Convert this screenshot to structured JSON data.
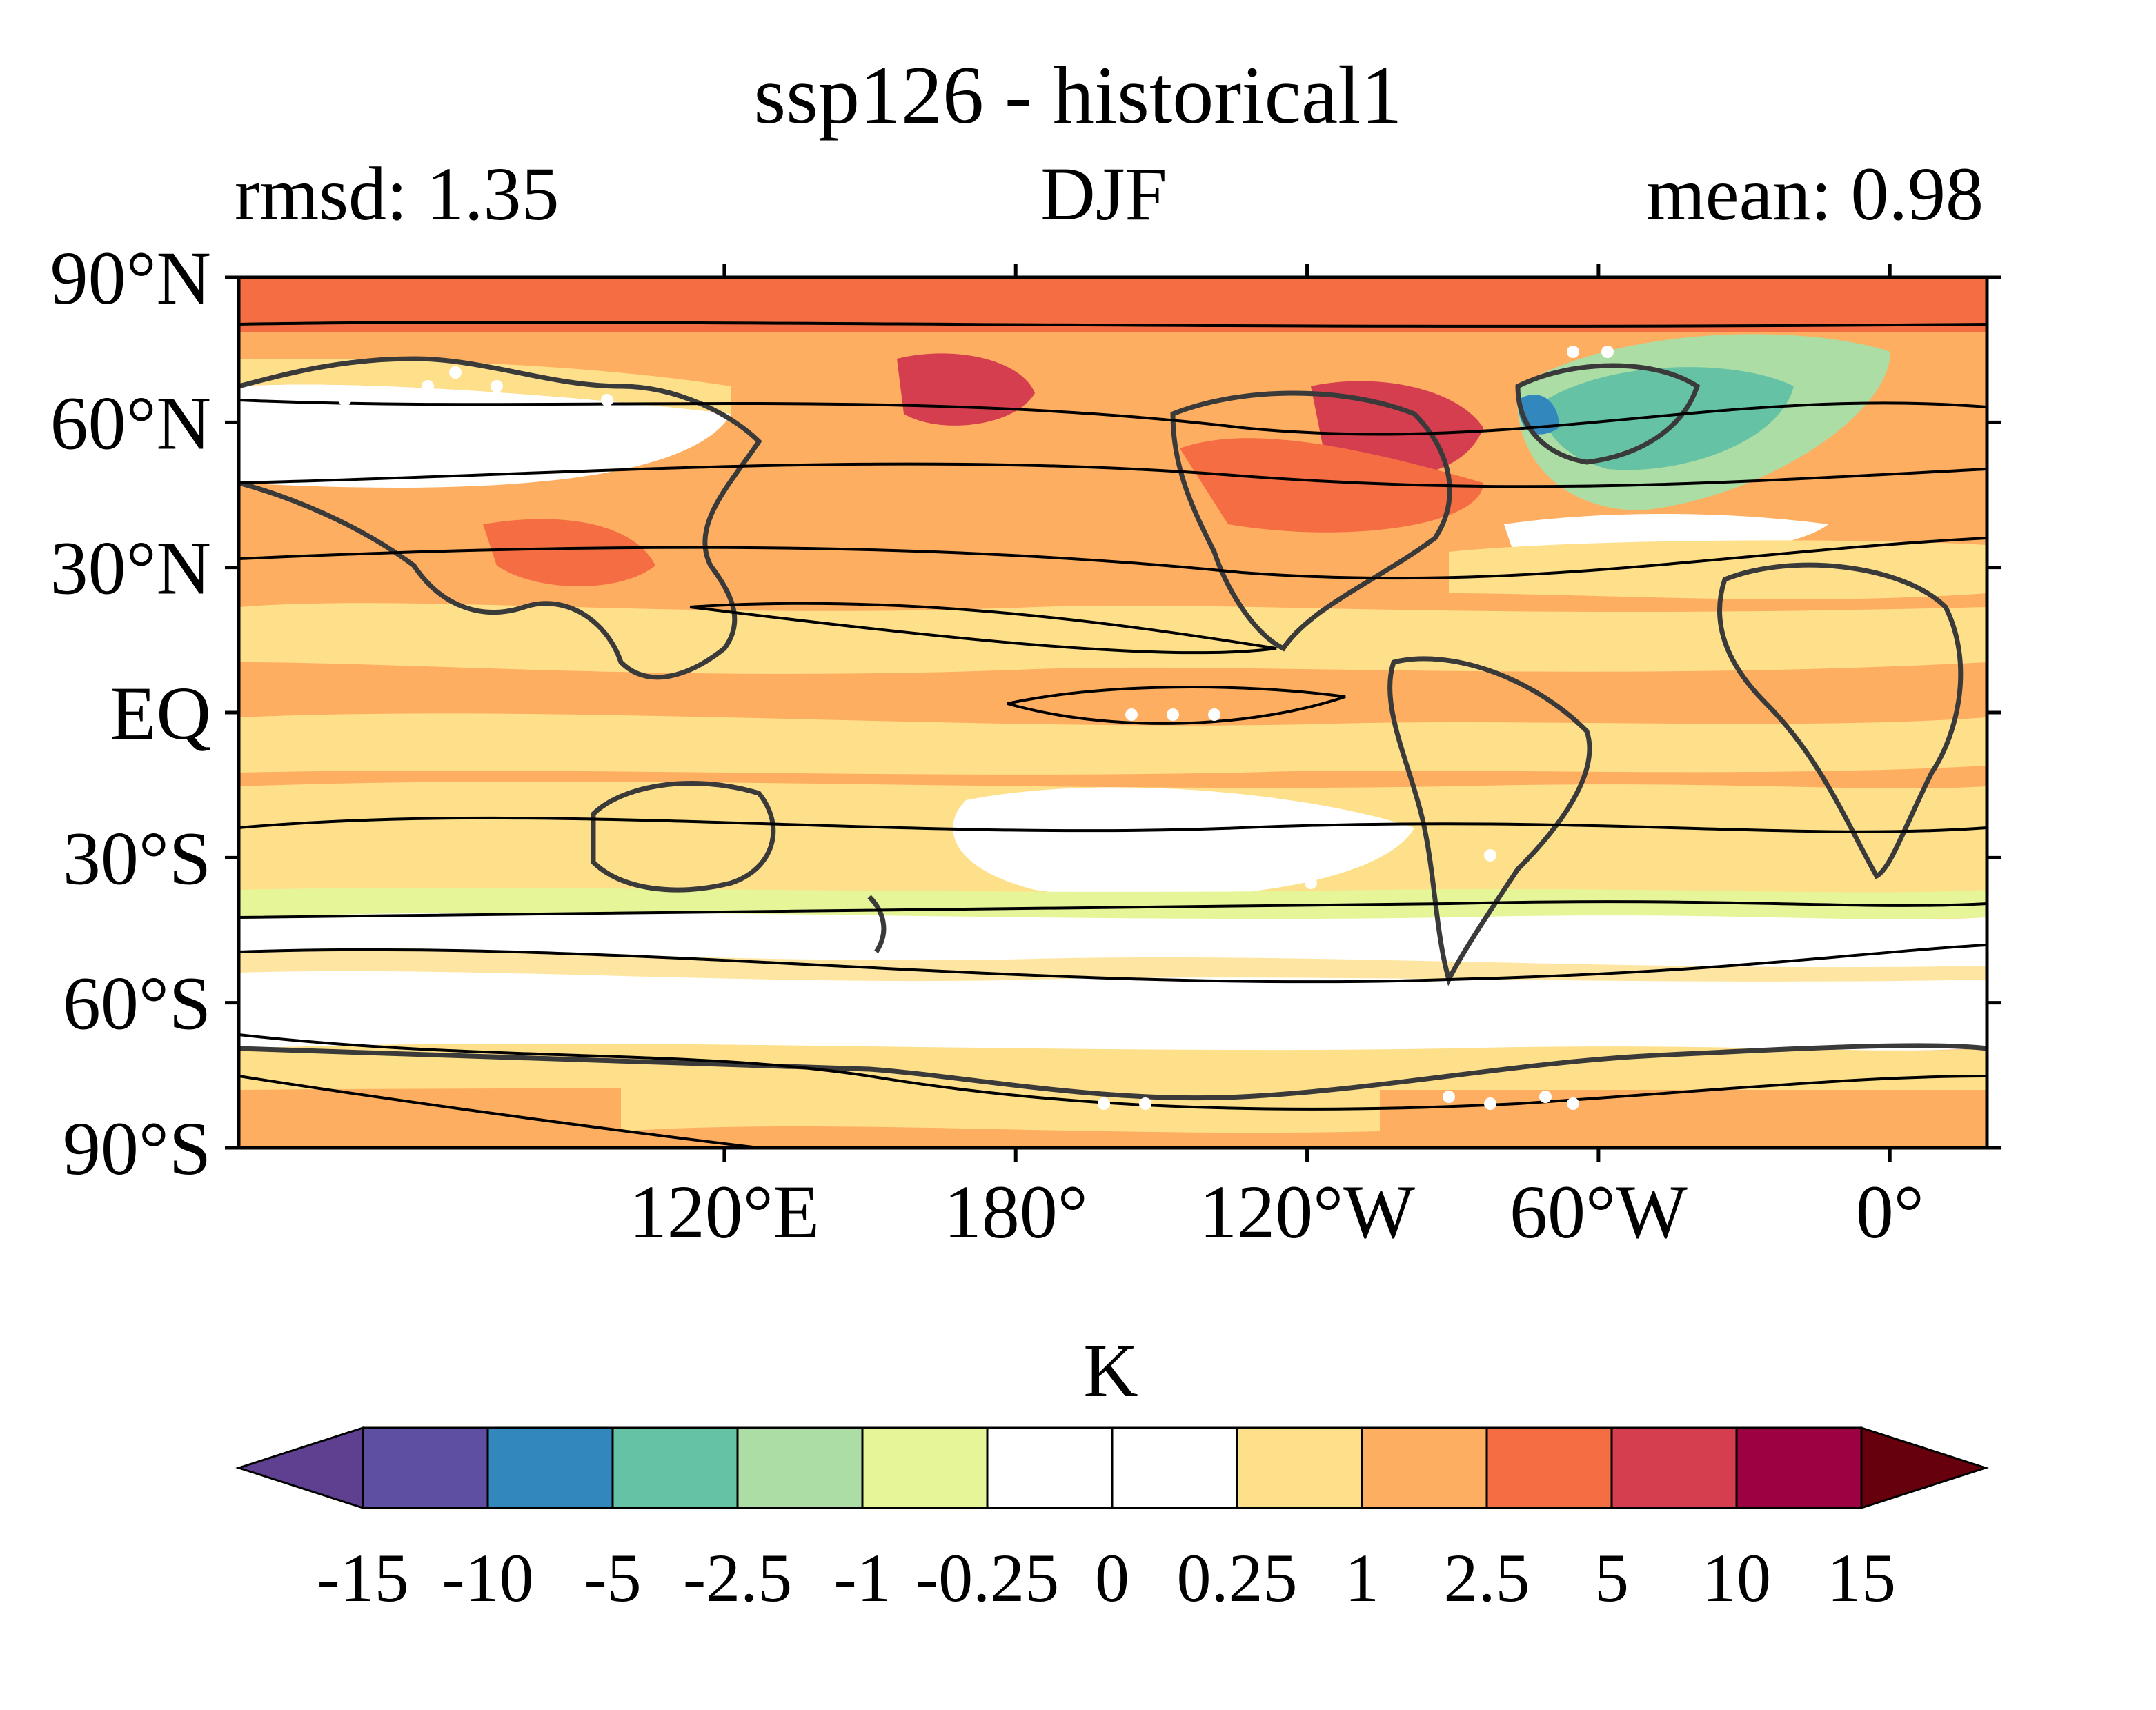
{
  "title": "ssp126 - historical1",
  "left_label": "rmsd: 1.35",
  "center_label": "DJF",
  "right_label": "mean: 0.98",
  "colorbar_unit": "K",
  "map": {
    "projection": "equirectangular",
    "lon_range": [
      20,
      380
    ],
    "lat_range": [
      -90,
      90
    ],
    "lat_ticks": [
      {
        "value": 90,
        "label": "90°N"
      },
      {
        "value": 60,
        "label": "60°N"
      },
      {
        "value": 30,
        "label": "30°N"
      },
      {
        "value": 0,
        "label": "EQ"
      },
      {
        "value": -30,
        "label": "30°S"
      },
      {
        "value": -60,
        "label": "60°S"
      },
      {
        "value": -90,
        "label": "90°S"
      }
    ],
    "lon_ticks": [
      {
        "value": 120,
        "label": "120°E"
      },
      {
        "value": 180,
        "label": "180°"
      },
      {
        "value": 240,
        "label": "120°W"
      },
      {
        "value": 300,
        "label": "60°W"
      },
      {
        "value": 360,
        "label": "0°"
      }
    ]
  },
  "colorbar": {
    "tick_labels": [
      "-15",
      "-10",
      "-5",
      "-2.5",
      "-1",
      "-0.25",
      "0",
      "0.25",
      "1",
      "2.5",
      "5",
      "10",
      "15"
    ],
    "colors": [
      "#5e3f90",
      "#5e4fa2",
      "#3288bd",
      "#66c2a5",
      "#abdda4",
      "#e6f598",
      "#ffffff",
      "#ffffff",
      "#fee08b",
      "#fdae61",
      "#f46d43",
      "#d53e4f",
      "#9e0142",
      "#67000d"
    ]
  }
}
